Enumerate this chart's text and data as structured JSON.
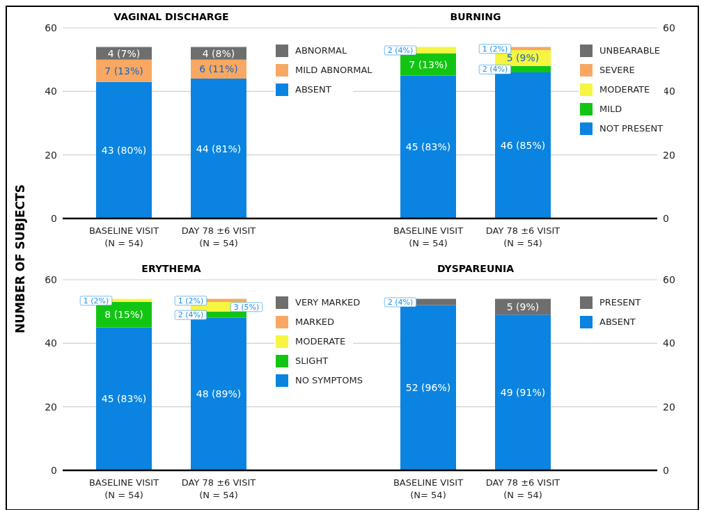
{
  "chart_data": [
    {
      "type": "bar",
      "title": "VAGINAL DISCHARGE",
      "ylabel": "NUMBER OF SUBJECTS",
      "categories": [
        "BASELINE VISIT (N = 54)",
        "DAY 78 ±6 VISIT (N = 54)"
      ],
      "stacked": true,
      "ylim": [
        0,
        60
      ],
      "yticks": [
        0,
        20,
        40,
        60
      ],
      "grid": "y",
      "legend": "right",
      "series": [
        {
          "name": "ABSENT",
          "color": "#0a84e0",
          "values": [
            43,
            44
          ],
          "value_labels": [
            "43 (80%)",
            "44 (81%)"
          ]
        },
        {
          "name": "MILD ABNORMAL",
          "color": "#f8a862",
          "values": [
            7,
            6
          ],
          "value_labels": [
            "7 (13%)",
            "6 (11%)"
          ]
        },
        {
          "name": "ABNORMAL",
          "color": "#6e6e6e",
          "values": [
            4,
            4
          ],
          "value_labels": [
            "4 (7%)",
            "4 (8%)"
          ]
        }
      ]
    },
    {
      "type": "bar",
      "title": "BURNING",
      "categories": [
        "BASELINE VISIT (N = 54)",
        "DAY 78 ±6 VISIT (N = 54)"
      ],
      "stacked": true,
      "ylim": [
        0,
        60
      ],
      "yticks": [
        0,
        20,
        40,
        60
      ],
      "grid": "y",
      "legend": "right",
      "series": [
        {
          "name": "NOT PRESENT",
          "color": "#0a84e0",
          "values": [
            45,
            46
          ],
          "value_labels": [
            "45 (83%)",
            "46 (85%)"
          ]
        },
        {
          "name": "MILD",
          "color": "#13c513",
          "values": [
            7,
            2
          ],
          "value_labels": [
            "7 (13%)",
            "2 (4%)"
          ]
        },
        {
          "name": "MODERATE",
          "color": "#f5f542",
          "values": [
            2,
            5
          ],
          "value_labels": [
            "2 (4%)",
            "5 (9%)"
          ]
        },
        {
          "name": "SEVERE",
          "color": "#f8a862",
          "values": [
            0,
            1
          ],
          "value_labels": [
            null,
            "1 (2%)"
          ]
        },
        {
          "name": "UNBEARABLE",
          "color": "#6e6e6e",
          "values": [
            0,
            0
          ],
          "value_labels": [
            null,
            null
          ]
        }
      ]
    },
    {
      "type": "bar",
      "title": "ERYTHEMA",
      "categories": [
        "BASELINE VISIT (N = 54)",
        "DAY 78 ±6 VISIT (N = 54)"
      ],
      "stacked": true,
      "ylim": [
        0,
        60
      ],
      "yticks": [
        0,
        20,
        40,
        60
      ],
      "grid": "y",
      "legend": "right",
      "series": [
        {
          "name": "NO SYMPTOMS",
          "color": "#0a84e0",
          "values": [
            45,
            48
          ],
          "value_labels": [
            "45 (83%)",
            "48 (89%)"
          ]
        },
        {
          "name": "SLIGHT",
          "color": "#13c513",
          "values": [
            8,
            2
          ],
          "value_labels": [
            "8 (15%)",
            "2 (4%)"
          ]
        },
        {
          "name": "MODERATE",
          "color": "#f5f542",
          "values": [
            1,
            3
          ],
          "value_labels": [
            "1 (2%)",
            "3 (5%)"
          ]
        },
        {
          "name": "MARKED",
          "color": "#f8a862",
          "values": [
            0,
            1
          ],
          "value_labels": [
            null,
            "1 (2%)"
          ]
        },
        {
          "name": "VERY MARKED",
          "color": "#6e6e6e",
          "values": [
            0,
            0
          ],
          "value_labels": [
            null,
            null
          ]
        }
      ]
    },
    {
      "type": "bar",
      "title": "DYSPAREUNIA",
      "categories": [
        "BASELINE VISIT (N= 54)",
        "DAY 78 ±6 VISIT (N = 54)"
      ],
      "stacked": true,
      "ylim": [
        0,
        60
      ],
      "yticks": [
        0,
        20,
        40,
        60
      ],
      "grid": "y",
      "legend": "right",
      "series": [
        {
          "name": "ABSENT",
          "color": "#0a84e0",
          "values": [
            52,
            49
          ],
          "value_labels": [
            "52 (96%)",
            "49 (91%)"
          ]
        },
        {
          "name": "PRESENT",
          "color": "#6e6e6e",
          "values": [
            2,
            5
          ],
          "value_labels": [
            "2 (4%)",
            "5 (9%)"
          ]
        }
      ]
    }
  ]
}
